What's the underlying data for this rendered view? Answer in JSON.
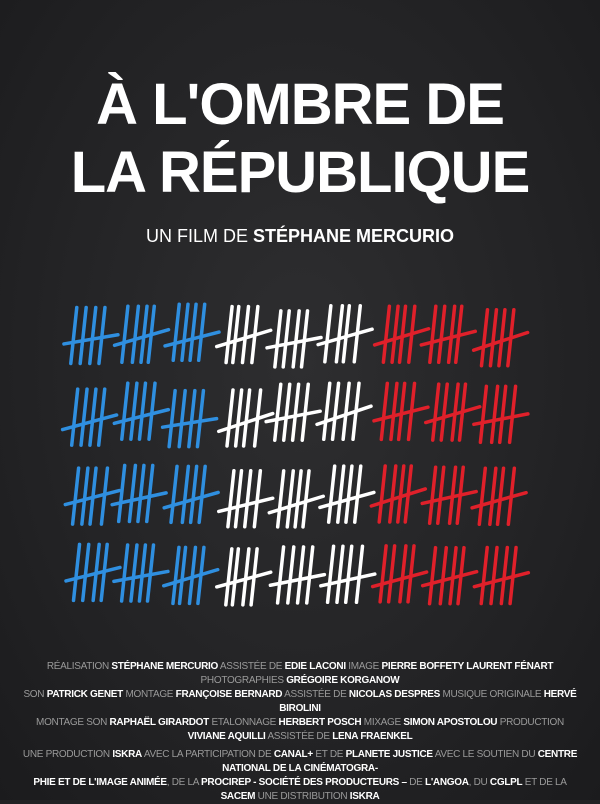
{
  "title": {
    "line1": "À L'OMBRE DE",
    "line2": "LA RÉPUBLIQUE"
  },
  "subtitle": {
    "prefix": "UN FILM DE",
    "director": "STÉPHANE MERCURIO"
  },
  "tally": {
    "rows": 4,
    "groups_per_color": 3,
    "colors": [
      "#2f8fe0",
      "#ffffff",
      "#e0202a"
    ]
  },
  "credits": [
    [
      [
        "n",
        "RÉALISATION "
      ],
      [
        "b",
        "STÉPHANE MERCURIO"
      ],
      [
        "n",
        " ASSISTÉE DE "
      ],
      [
        "b",
        "EDIE LACONI"
      ],
      [
        "n",
        " IMAGE "
      ],
      [
        "b",
        "PIERRE BOFFETY  LAURENT FÉNART"
      ],
      [
        "n",
        " PHOTOGRAPHIES "
      ],
      [
        "b",
        "GRÉGOIRE KORGANOW"
      ]
    ],
    [
      [
        "n",
        "SON "
      ],
      [
        "b",
        "PATRICK GENET"
      ],
      [
        "n",
        " MONTAGE "
      ],
      [
        "b",
        "FRANÇOISE BERNARD"
      ],
      [
        "n",
        " ASSISTÉE DE "
      ],
      [
        "b",
        "NICOLAS DESPRES"
      ],
      [
        "n",
        " MUSIQUE ORIGINALE "
      ],
      [
        "b",
        "HERVÉ BIROLINI"
      ]
    ],
    [
      [
        "n",
        "MONTAGE SON "
      ],
      [
        "b",
        "RAPHAËL GIRARDOT"
      ],
      [
        "n",
        " ETALONNAGE "
      ],
      [
        "b",
        "HERBERT POSCH"
      ],
      [
        "n",
        " MIXAGE "
      ],
      [
        "b",
        "SIMON APOSTOLOU"
      ],
      [
        "n",
        " PRODUCTION "
      ],
      [
        "b",
        "VIVIANE AQUILLI"
      ],
      [
        "n",
        " ASSISTÉE DE "
      ],
      [
        "b",
        "LENA FRAENKEL"
      ]
    ],
    [
      [
        "n",
        "UNE PRODUCTION "
      ],
      [
        "b",
        "ISKRA"
      ],
      [
        "n",
        " AVEC LA PARTICIPATION DE "
      ],
      [
        "b",
        "CANAL+"
      ],
      [
        "n",
        " ET DE "
      ],
      [
        "b",
        "PLANETE JUSTICE"
      ],
      [
        "n",
        " AVEC LE SOUTIEN DU "
      ],
      [
        "b",
        "CENTRE NATIONAL DE LA CINÉMATOGRA-"
      ]
    ],
    [
      [
        "b",
        "PHIE ET DE L'IMAGE ANIMÉE"
      ],
      [
        "n",
        ", DE LA "
      ],
      [
        "b",
        "PROCIREP - SOCIÉTÉ DES PRODUCTEURS –"
      ],
      [
        "n",
        " DE "
      ],
      [
        "b",
        "L'ANGOA"
      ],
      [
        "n",
        ", DU "
      ],
      [
        "b",
        "CGLPL"
      ],
      [
        "n",
        " ET DE LA "
      ],
      [
        "b",
        "SACEM"
      ],
      [
        "n",
        " UNE DISTRIBUTION "
      ],
      [
        "b",
        "ISKRA"
      ]
    ]
  ]
}
